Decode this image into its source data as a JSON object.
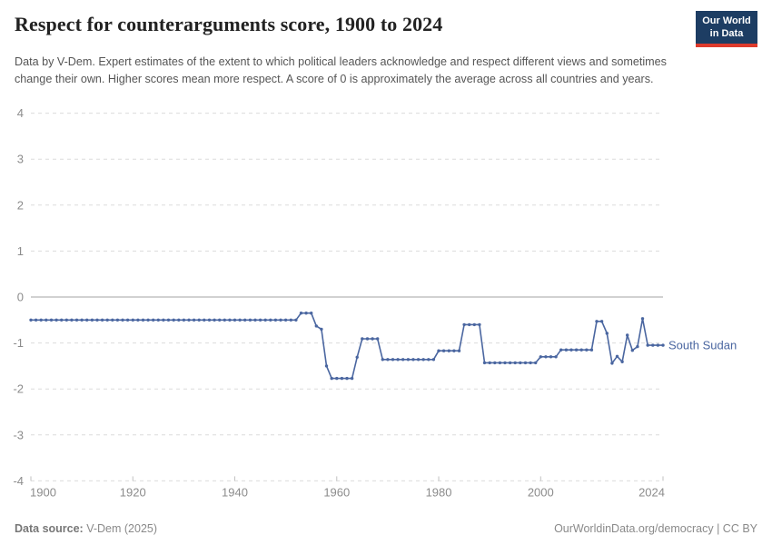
{
  "header": {
    "title": "Respect for counterarguments score, 1900 to 2024",
    "logo": {
      "line1": "Our World",
      "line2": "in Data",
      "bg_color": "#1d3d63",
      "accent_color": "#dd3a2c"
    }
  },
  "subtitle": "Data by V-Dem. Expert estimates of the extent to which political leaders acknowledge and respect different views and sometimes change their own. Higher scores mean more respect. A score of 0 is approximately the average across all countries and years.",
  "chart_data": {
    "type": "line",
    "title": "Respect for counterarguments score, 1900 to 2024",
    "xlabel": "",
    "ylabel": "",
    "ylim": [
      -4,
      4
    ],
    "yticks": [
      4,
      3,
      2,
      1,
      0,
      -1,
      -2,
      -3,
      -4
    ],
    "xticks": [
      1900,
      1920,
      1940,
      1960,
      1980,
      2000,
      2024
    ],
    "grid": "dashed-horizontal",
    "zero_line": true,
    "legend_position": "end-of-line",
    "end_label": "South Sudan",
    "line_color": "#4a66a0",
    "axis_text_color": "#8c8c8c",
    "series": [
      {
        "name": "South Sudan",
        "color": "#4a66a0",
        "x_start": 1900,
        "x_step": 1,
        "values": [
          -0.5,
          -0.5,
          -0.5,
          -0.5,
          -0.5,
          -0.5,
          -0.5,
          -0.5,
          -0.5,
          -0.5,
          -0.5,
          -0.5,
          -0.5,
          -0.5,
          -0.5,
          -0.5,
          -0.5,
          -0.5,
          -0.5,
          -0.5,
          -0.5,
          -0.5,
          -0.5,
          -0.5,
          -0.5,
          -0.5,
          -0.5,
          -0.5,
          -0.5,
          -0.5,
          -0.5,
          -0.5,
          -0.5,
          -0.5,
          -0.5,
          -0.5,
          -0.5,
          -0.5,
          -0.5,
          -0.5,
          -0.5,
          -0.5,
          -0.5,
          -0.5,
          -0.5,
          -0.5,
          -0.5,
          -0.5,
          -0.5,
          -0.5,
          -0.5,
          -0.5,
          -0.5,
          -0.35,
          -0.35,
          -0.35,
          -0.63,
          -0.7,
          -1.5,
          -1.77,
          -1.77,
          -1.77,
          -1.77,
          -1.77,
          -1.31,
          -0.91,
          -0.91,
          -0.91,
          -0.91,
          -1.36,
          -1.36,
          -1.36,
          -1.36,
          -1.36,
          -1.36,
          -1.36,
          -1.36,
          -1.36,
          -1.36,
          -1.36,
          -1.17,
          -1.17,
          -1.17,
          -1.17,
          -1.17,
          -0.6,
          -0.6,
          -0.6,
          -0.6,
          -1.43,
          -1.43,
          -1.43,
          -1.43,
          -1.43,
          -1.43,
          -1.43,
          -1.43,
          -1.43,
          -1.43,
          -1.43,
          -1.3,
          -1.3,
          -1.3,
          -1.3,
          -1.15,
          -1.15,
          -1.15,
          -1.15,
          -1.15,
          -1.15,
          -1.15,
          -0.53,
          -0.53,
          -0.79,
          -1.44,
          -1.29,
          -1.41,
          -0.83,
          -1.16,
          -1.08,
          -0.47,
          -1.05,
          -1.05,
          -1.05,
          -1.05
        ]
      }
    ]
  },
  "footer": {
    "source_label": "Data source:",
    "source_value": " V-Dem (2025)",
    "right_text": "OurWorldinData.org/democracy | CC BY"
  }
}
